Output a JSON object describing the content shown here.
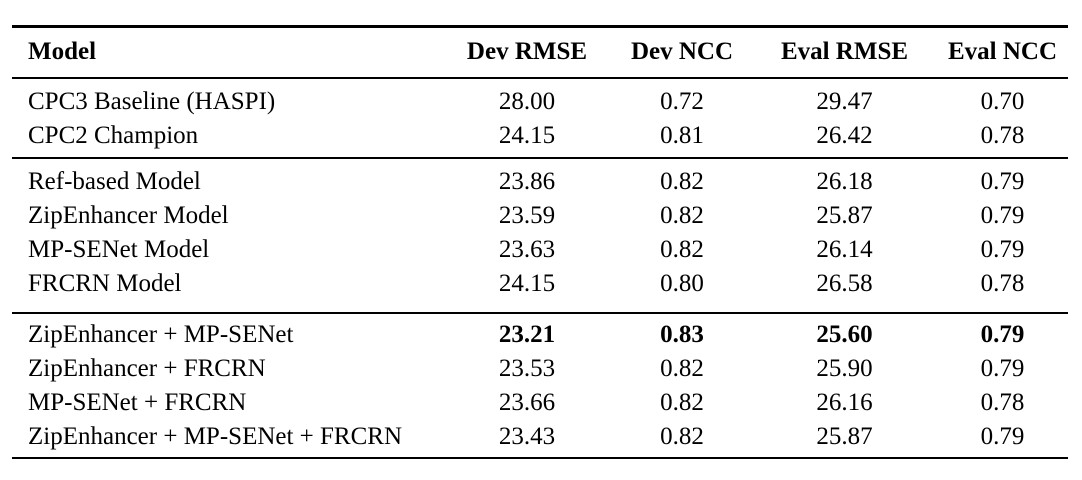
{
  "colors": {
    "background": "#ffffff",
    "text": "#000000",
    "rule": "#000000"
  },
  "table": {
    "columns": [
      "Model",
      "Dev RMSE",
      "Dev NCC",
      "Eval RMSE",
      "Eval NCC"
    ],
    "sections": [
      {
        "rows": [
          {
            "model": "CPC3 Baseline (HASPI)",
            "dev_rmse": "28.00",
            "dev_ncc": "0.72",
            "eval_rmse": "29.47",
            "eval_ncc": "0.70",
            "bold": false
          },
          {
            "model": "CPC2 Champion",
            "dev_rmse": "24.15",
            "dev_ncc": "0.81",
            "eval_rmse": "26.42",
            "eval_ncc": "0.78",
            "bold": false
          }
        ]
      },
      {
        "rows": [
          {
            "model": "Ref-based Model",
            "dev_rmse": "23.86",
            "dev_ncc": "0.82",
            "eval_rmse": "26.18",
            "eval_ncc": "0.79",
            "bold": false
          },
          {
            "model": "ZipEnhancer Model",
            "dev_rmse": "23.59",
            "dev_ncc": "0.82",
            "eval_rmse": "25.87",
            "eval_ncc": "0.79",
            "bold": false
          },
          {
            "model": "MP-SENet Model",
            "dev_rmse": "23.63",
            "dev_ncc": "0.82",
            "eval_rmse": "26.14",
            "eval_ncc": "0.79",
            "bold": false
          },
          {
            "model": "FRCRN Model",
            "dev_rmse": "24.15",
            "dev_ncc": "0.80",
            "eval_rmse": "26.58",
            "eval_ncc": "0.78",
            "bold": false
          }
        ]
      },
      {
        "rows": [
          {
            "model": "ZipEnhancer + MP-SENet",
            "dev_rmse": "23.21",
            "dev_ncc": "0.83",
            "eval_rmse": "25.60",
            "eval_ncc": "0.79",
            "bold": true
          },
          {
            "model": "ZipEnhancer + FRCRN",
            "dev_rmse": "23.53",
            "dev_ncc": "0.82",
            "eval_rmse": "25.90",
            "eval_ncc": "0.79",
            "bold": false
          },
          {
            "model": "MP-SENet + FRCRN",
            "dev_rmse": "23.66",
            "dev_ncc": "0.82",
            "eval_rmse": "26.16",
            "eval_ncc": "0.78",
            "bold": false
          },
          {
            "model": "ZipEnhancer + MP-SENet + FRCRN",
            "dev_rmse": "23.43",
            "dev_ncc": "0.82",
            "eval_rmse": "25.87",
            "eval_ncc": "0.79",
            "bold": false
          }
        ]
      }
    ]
  }
}
